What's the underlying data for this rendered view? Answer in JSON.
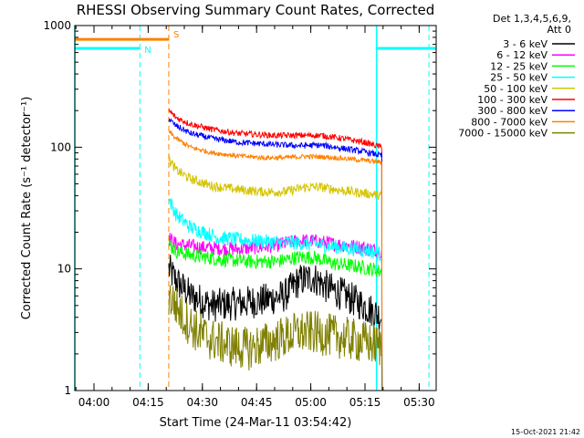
{
  "chart_data": {
    "type": "line",
    "title": "RHESSI Observing Summary Count Rates, Corrected",
    "xlabel": "Start Time (24-Mar-11 03:54:42)",
    "ylabel": "Corrected Count Rate (s⁻¹ detector⁻¹)",
    "yscale": "log",
    "ylim": [
      1,
      1000
    ],
    "xlim_minutes": [
      0,
      100
    ],
    "x_ticks": [
      {
        "label": "04:00",
        "minute": 5.3
      },
      {
        "label": "04:15",
        "minute": 20.3
      },
      {
        "label": "04:30",
        "minute": 35.3
      },
      {
        "label": "04:45",
        "minute": 50.3
      },
      {
        "label": "05:00",
        "minute": 65.3
      },
      {
        "label": "05:15",
        "minute": 80.3
      },
      {
        "label": "05:30",
        "minute": 95.3
      }
    ],
    "y_ticks": [
      {
        "label": "1",
        "value": 1
      },
      {
        "label": "10",
        "value": 10
      },
      {
        "label": "100",
        "value": 100
      },
      {
        "label": "1000",
        "value": 1000
      }
    ],
    "legend_header": [
      "Det 1,3,4,5,6,9,",
      "Att 0"
    ],
    "series": [
      {
        "name": "3 - 6 keV",
        "color": "#000000",
        "pts": [
          [
            26,
            10
          ],
          [
            28,
            8
          ],
          [
            32,
            6
          ],
          [
            38,
            5
          ],
          [
            45,
            5.2
          ],
          [
            52,
            5.5
          ],
          [
            58,
            6
          ],
          [
            62,
            8
          ],
          [
            66,
            8.5
          ],
          [
            70,
            7
          ],
          [
            75,
            6
          ],
          [
            80,
            5
          ],
          [
            85,
            4
          ]
        ],
        "noise": 0.14
      },
      {
        "name": "6 - 12 keV",
        "color": "#ff00ff",
        "pts": [
          [
            26,
            18
          ],
          [
            28,
            16
          ],
          [
            35,
            15
          ],
          [
            45,
            14.5
          ],
          [
            55,
            15.5
          ],
          [
            62,
            17
          ],
          [
            66,
            17
          ],
          [
            72,
            16
          ],
          [
            80,
            15
          ],
          [
            85,
            14
          ]
        ],
        "noise": 0.06
      },
      {
        "name": "12 - 25 keV",
        "color": "#00ff00",
        "pts": [
          [
            26,
            16
          ],
          [
            28,
            14
          ],
          [
            32,
            13
          ],
          [
            40,
            12
          ],
          [
            48,
            11.5
          ],
          [
            56,
            11.5
          ],
          [
            62,
            12.5
          ],
          [
            66,
            12.5
          ],
          [
            72,
            11
          ],
          [
            78,
            10.5
          ],
          [
            82,
            10
          ],
          [
            85,
            9.5
          ]
        ],
        "noise": 0.06
      },
      {
        "name": "25 - 50 keV",
        "color": "#00ffff",
        "pts": [
          [
            26,
            38
          ],
          [
            28,
            28
          ],
          [
            32,
            22
          ],
          [
            40,
            18
          ],
          [
            50,
            17
          ],
          [
            58,
            16.5
          ],
          [
            66,
            16
          ],
          [
            74,
            15
          ],
          [
            82,
            14
          ],
          [
            85,
            13
          ]
        ],
        "noise": 0.06
      },
      {
        "name": "50 - 100 keV",
        "color": "#d4c400",
        "pts": [
          [
            26,
            80
          ],
          [
            28,
            65
          ],
          [
            32,
            55
          ],
          [
            38,
            48
          ],
          [
            45,
            45
          ],
          [
            52,
            43
          ],
          [
            58,
            43
          ],
          [
            64,
            47
          ],
          [
            68,
            47
          ],
          [
            74,
            44
          ],
          [
            80,
            42
          ],
          [
            85,
            40
          ]
        ],
        "noise": 0.04
      },
      {
        "name": "100 - 300 keV",
        "color": "#ff0000",
        "pts": [
          [
            26,
            200
          ],
          [
            28,
            175
          ],
          [
            32,
            155
          ],
          [
            38,
            140
          ],
          [
            45,
            130
          ],
          [
            55,
            125
          ],
          [
            62,
            125
          ],
          [
            68,
            125
          ],
          [
            74,
            118
          ],
          [
            80,
            110
          ],
          [
            85,
            100
          ]
        ],
        "noise": 0.025
      },
      {
        "name": "300 - 800 keV",
        "color": "#0000ff",
        "pts": [
          [
            26,
            170
          ],
          [
            28,
            150
          ],
          [
            32,
            130
          ],
          [
            38,
            118
          ],
          [
            45,
            110
          ],
          [
            55,
            105
          ],
          [
            62,
            103
          ],
          [
            68,
            104
          ],
          [
            74,
            98
          ],
          [
            80,
            92
          ],
          [
            85,
            85
          ]
        ],
        "noise": 0.025
      },
      {
        "name": "800 - 7000 keV",
        "color": "#ff8000",
        "pts": [
          [
            26,
            135
          ],
          [
            28,
            118
          ],
          [
            32,
            100
          ],
          [
            38,
            90
          ],
          [
            45,
            85
          ],
          [
            52,
            82
          ],
          [
            58,
            82
          ],
          [
            64,
            84
          ],
          [
            70,
            83
          ],
          [
            76,
            80
          ],
          [
            82,
            77
          ],
          [
            85,
            75
          ]
        ],
        "noise": 0.02
      },
      {
        "name": "7000 - 15000 keV",
        "color": "#808000",
        "pts": [
          [
            26,
            6
          ],
          [
            28,
            5
          ],
          [
            30,
            4
          ],
          [
            34,
            3
          ],
          [
            38,
            2.6
          ],
          [
            44,
            2.3
          ],
          [
            48,
            2.2
          ],
          [
            54,
            2.5
          ],
          [
            62,
            3
          ],
          [
            66,
            3
          ],
          [
            72,
            2.8
          ],
          [
            80,
            2.5
          ],
          [
            85,
            2.3
          ]
        ],
        "noise": 0.18
      }
    ],
    "flags": [
      {
        "label": "N",
        "color": "#00ffff",
        "segments": [
          [
            0,
            18
          ],
          [
            83.5,
            100
          ]
        ],
        "level": 650
      },
      {
        "label": "S",
        "color": "#ff8000",
        "segments": [
          [
            0,
            26
          ]
        ],
        "level": 770
      }
    ],
    "vlines": [
      {
        "minute": 18,
        "color": "#00ffff"
      },
      {
        "minute": 26,
        "color": "#ff8000"
      },
      {
        "minute": 98,
        "color": "#00ffff"
      }
    ],
    "solid_vlines": [
      {
        "minute": 0,
        "color": "#00ffff"
      },
      {
        "minute": 83.5,
        "color": "#00ffff"
      }
    ]
  },
  "footer_date": "15-Oct-2021 21:42"
}
